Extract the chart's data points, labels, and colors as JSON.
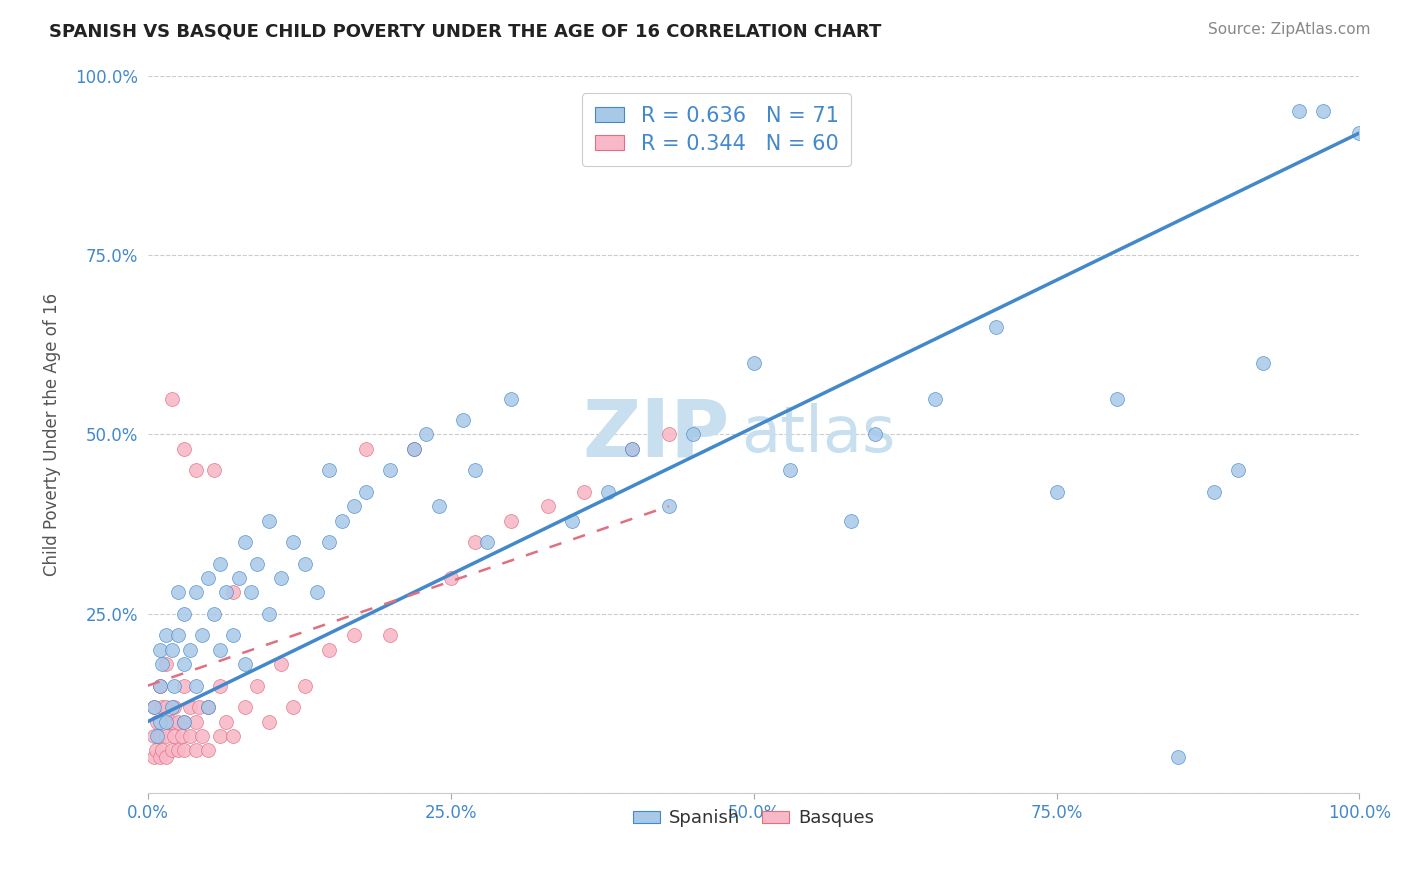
{
  "title": "SPANISH VS BASQUE CHILD POVERTY UNDER THE AGE OF 16 CORRELATION CHART",
  "source_text": "Source: ZipAtlas.com",
  "ylabel": "Child Poverty Under the Age of 16",
  "xlabel": "",
  "watermark_zip": "ZIP",
  "watermark_atlas": "atlas",
  "legend_label_spanish": "R = 0.636   N = 71",
  "legend_label_basque": "R = 0.344   N = 60",
  "spanish_color": "#a8c8e8",
  "basque_color": "#f8b8c8",
  "spanish_line_color": "#4488cc",
  "basque_line_color": "#e07080",
  "title_color": "#222222",
  "source_color": "#888888",
  "watermark_color": "#c8dff0",
  "tick_label_color": "#4488cc",
  "legend_text_color": "#4488cc",
  "ylim": [
    0.0,
    1.0
  ],
  "xlim": [
    0.0,
    1.0
  ],
  "ytick_values": [
    0.0,
    0.25,
    0.5,
    0.75,
    1.0
  ],
  "ytick_labels": [
    "",
    "25.0%",
    "50.0%",
    "75.0%",
    "100.0%"
  ],
  "xtick_values": [
    0.0,
    0.25,
    0.5,
    0.75,
    1.0
  ],
  "xtick_labels": [
    "0.0%",
    "25.0%",
    "50.0%",
    "75.0%",
    "100.0%"
  ],
  "spanish_trend_x0": 0.0,
  "spanish_trend_y0": 0.1,
  "spanish_trend_x1": 1.0,
  "spanish_trend_y1": 0.92,
  "basque_trend_x0": 0.0,
  "basque_trend_y0": 0.15,
  "basque_trend_x1": 0.43,
  "basque_trend_y1": 0.4,
  "spanish_x": [
    0.005,
    0.008,
    0.01,
    0.01,
    0.01,
    0.012,
    0.015,
    0.015,
    0.02,
    0.02,
    0.022,
    0.025,
    0.025,
    0.03,
    0.03,
    0.03,
    0.035,
    0.04,
    0.04,
    0.045,
    0.05,
    0.05,
    0.055,
    0.06,
    0.06,
    0.065,
    0.07,
    0.075,
    0.08,
    0.08,
    0.085,
    0.09,
    0.1,
    0.1,
    0.11,
    0.12,
    0.13,
    0.14,
    0.15,
    0.15,
    0.16,
    0.17,
    0.18,
    0.2,
    0.22,
    0.23,
    0.24,
    0.26,
    0.27,
    0.28,
    0.3,
    0.35,
    0.38,
    0.4,
    0.43,
    0.45,
    0.5,
    0.53,
    0.58,
    0.6,
    0.65,
    0.7,
    0.75,
    0.8,
    0.85,
    0.88,
    0.9,
    0.92,
    0.95,
    0.97,
    1.0
  ],
  "spanish_y": [
    0.12,
    0.08,
    0.1,
    0.15,
    0.2,
    0.18,
    0.1,
    0.22,
    0.12,
    0.2,
    0.15,
    0.22,
    0.28,
    0.1,
    0.18,
    0.25,
    0.2,
    0.15,
    0.28,
    0.22,
    0.12,
    0.3,
    0.25,
    0.2,
    0.32,
    0.28,
    0.22,
    0.3,
    0.18,
    0.35,
    0.28,
    0.32,
    0.25,
    0.38,
    0.3,
    0.35,
    0.32,
    0.28,
    0.35,
    0.45,
    0.38,
    0.4,
    0.42,
    0.45,
    0.48,
    0.5,
    0.4,
    0.52,
    0.45,
    0.35,
    0.55,
    0.38,
    0.42,
    0.48,
    0.4,
    0.5,
    0.6,
    0.45,
    0.38,
    0.5,
    0.55,
    0.65,
    0.42,
    0.55,
    0.05,
    0.42,
    0.45,
    0.6,
    0.95,
    0.95,
    0.92
  ],
  "basque_x": [
    0.005,
    0.005,
    0.005,
    0.007,
    0.008,
    0.01,
    0.01,
    0.01,
    0.012,
    0.012,
    0.015,
    0.015,
    0.015,
    0.015,
    0.018,
    0.02,
    0.02,
    0.02,
    0.022,
    0.022,
    0.025,
    0.025,
    0.028,
    0.03,
    0.03,
    0.03,
    0.03,
    0.035,
    0.035,
    0.04,
    0.04,
    0.04,
    0.042,
    0.045,
    0.05,
    0.05,
    0.055,
    0.06,
    0.06,
    0.065,
    0.07,
    0.07,
    0.08,
    0.09,
    0.1,
    0.11,
    0.12,
    0.13,
    0.15,
    0.17,
    0.18,
    0.2,
    0.22,
    0.25,
    0.27,
    0.3,
    0.33,
    0.36,
    0.4,
    0.43
  ],
  "basque_y": [
    0.05,
    0.08,
    0.12,
    0.06,
    0.1,
    0.05,
    0.08,
    0.15,
    0.06,
    0.12,
    0.05,
    0.08,
    0.12,
    0.18,
    0.1,
    0.06,
    0.1,
    0.55,
    0.08,
    0.12,
    0.06,
    0.1,
    0.08,
    0.06,
    0.1,
    0.15,
    0.48,
    0.08,
    0.12,
    0.06,
    0.1,
    0.45,
    0.12,
    0.08,
    0.06,
    0.12,
    0.45,
    0.08,
    0.15,
    0.1,
    0.08,
    0.28,
    0.12,
    0.15,
    0.1,
    0.18,
    0.12,
    0.15,
    0.2,
    0.22,
    0.48,
    0.22,
    0.48,
    0.3,
    0.35,
    0.38,
    0.4,
    0.42,
    0.48,
    0.5
  ]
}
